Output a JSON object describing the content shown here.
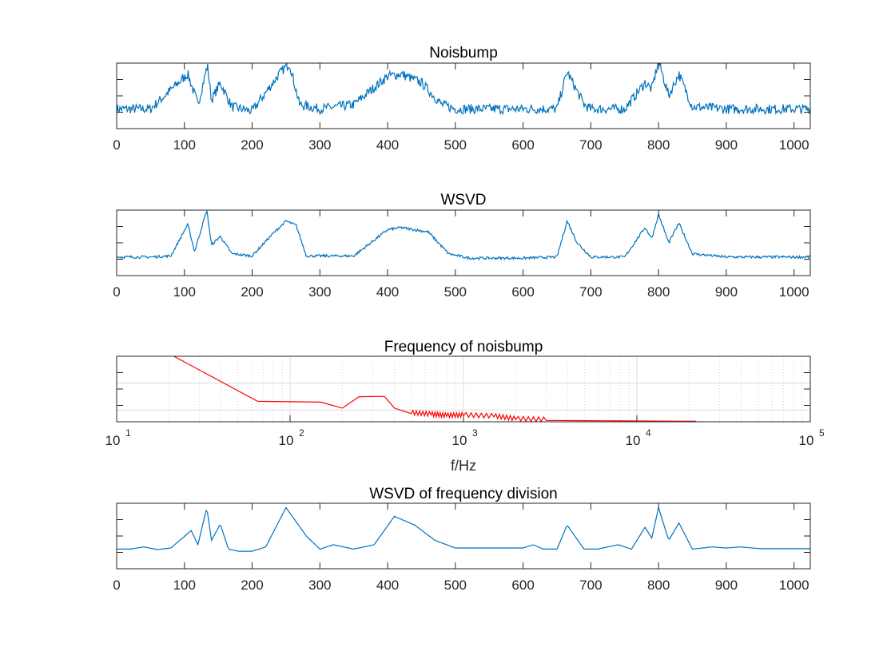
{
  "chart_data": [
    {
      "type": "line",
      "title": "Noisbump",
      "xlim": [
        0,
        1024
      ],
      "xticks": [
        "0",
        "100",
        "200",
        "300",
        "400",
        "500",
        "600",
        "700",
        "800",
        "900",
        "1000"
      ],
      "ylim": [
        -0.5,
        2.5
      ],
      "color": "#0072BD",
      "noisy": true,
      "bumps": [
        [
          105,
          4,
          1.6
        ],
        [
          134,
          3.5,
          2.3
        ],
        [
          153,
          4,
          1.2
        ],
        [
          250,
          14,
          2.1
        ],
        [
          410,
          40,
          1.6
        ],
        [
          460,
          10,
          0.5
        ],
        [
          665,
          8,
          1.65
        ],
        [
          780,
          4,
          1.2
        ],
        [
          800,
          5,
          2.2
        ],
        [
          830,
          4,
          1.6
        ]
      ],
      "baseline": 0.9,
      "x": [
        0,
        50,
        105,
        120,
        134,
        140,
        153,
        170,
        200,
        240,
        255,
        270,
        300,
        350,
        400,
        420,
        450,
        480,
        500,
        550,
        600,
        650,
        665,
        690,
        700,
        750,
        780,
        790,
        800,
        815,
        830,
        850,
        900,
        950,
        1000,
        1024
      ],
      "y": [
        0.4,
        0.4,
        2.0,
        0.6,
        2.4,
        0.8,
        1.6,
        0.5,
        0.3,
        2.0,
        2.5,
        0.6,
        0.4,
        0.6,
        1.9,
        2.0,
        1.6,
        0.6,
        0.4,
        0.4,
        0.4,
        0.4,
        2.1,
        0.6,
        0.4,
        0.4,
        1.6,
        1.3,
        2.6,
        1.0,
        2.0,
        0.5,
        0.4,
        0.4,
        0.4,
        0.4
      ]
    },
    {
      "type": "line",
      "title": "WSVD",
      "xlim": [
        0,
        1024
      ],
      "xticks": [
        "0",
        "100",
        "200",
        "300",
        "400",
        "500",
        "600",
        "700",
        "800",
        "900",
        "1000"
      ],
      "ylim": [
        -0.5,
        2.5
      ],
      "color": "#0072BD",
      "noisy": true,
      "x": [
        0,
        50,
        80,
        105,
        115,
        133,
        140,
        153,
        170,
        200,
        230,
        250,
        265,
        280,
        300,
        350,
        400,
        420,
        440,
        460,
        490,
        520,
        600,
        650,
        665,
        680,
        700,
        750,
        780,
        790,
        800,
        815,
        830,
        850,
        900,
        950,
        1000,
        1024
      ],
      "y": [
        0.35,
        0.35,
        0.4,
        1.85,
        0.6,
        2.5,
        0.9,
        1.3,
        0.5,
        0.4,
        1.4,
        2.0,
        1.8,
        0.4,
        0.4,
        0.4,
        1.6,
        1.7,
        1.6,
        1.5,
        0.5,
        0.3,
        0.3,
        0.35,
        2.0,
        1.0,
        0.35,
        0.35,
        1.7,
        1.2,
        2.3,
        1.0,
        1.9,
        0.5,
        0.35,
        0.35,
        0.35,
        0.35
      ]
    },
    {
      "type": "line",
      "title": "Frequency of noisbump",
      "xlabel": "f/Hz",
      "xscale": "log",
      "xlim": [
        10,
        100000
      ],
      "xticks": [
        "10",
        "10",
        "10",
        "10",
        "10"
      ],
      "xtick_exponents": [
        "1",
        "2",
        "3",
        "4",
        "5"
      ],
      "ylim": [
        0,
        2.4
      ],
      "color": "#FF0000",
      "grid": true,
      "x": [
        20,
        65,
        150,
        200,
        250,
        350,
        400,
        500,
        650,
        800,
        1000,
        1500,
        2000,
        3000,
        5000,
        10000,
        22000
      ],
      "y": [
        2.5,
        0.75,
        0.72,
        0.5,
        0.92,
        0.93,
        0.5,
        0.3,
        0.25,
        0.2,
        0.22,
        0.18,
        0.08,
        0.05,
        0.04,
        0.03,
        0.02
      ]
    },
    {
      "type": "line",
      "title": "WSVD of frequency division",
      "xlim": [
        0,
        1024
      ],
      "xticks": [
        "0",
        "100",
        "200",
        "300",
        "400",
        "500",
        "600",
        "700",
        "800",
        "900",
        "1000"
      ],
      "ylim": [
        -0.5,
        2.5
      ],
      "color": "#0072BD",
      "noisy": false,
      "x": [
        0,
        20,
        40,
        60,
        80,
        110,
        120,
        133,
        140,
        153,
        165,
        180,
        200,
        220,
        250,
        280,
        300,
        320,
        350,
        380,
        410,
        440,
        470,
        500,
        550,
        600,
        615,
        630,
        650,
        665,
        690,
        710,
        740,
        760,
        780,
        790,
        800,
        815,
        830,
        850,
        880,
        900,
        920,
        950,
        1000,
        1024
      ],
      "y": [
        0.4,
        0.4,
        0.5,
        0.38,
        0.45,
        1.25,
        0.6,
        2.3,
        0.8,
        1.55,
        0.4,
        0.3,
        0.3,
        0.5,
        2.3,
        1.0,
        0.4,
        0.6,
        0.4,
        0.6,
        1.9,
        1.5,
        0.8,
        0.45,
        0.45,
        0.45,
        0.6,
        0.4,
        0.4,
        1.5,
        0.4,
        0.4,
        0.6,
        0.4,
        1.4,
        0.9,
        2.3,
        0.8,
        1.6,
        0.4,
        0.5,
        0.45,
        0.5,
        0.42,
        0.42,
        0.42
      ]
    }
  ]
}
